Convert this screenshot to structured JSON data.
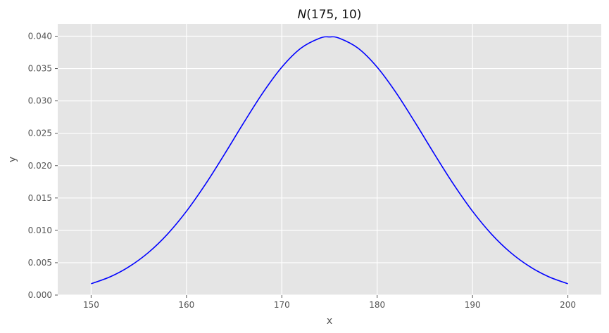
{
  "chart_data": {
    "type": "line",
    "title": {
      "symbol": "N",
      "args": "(175, 10)"
    },
    "xlabel": "x",
    "ylabel": "y",
    "xlim": [
      146.5,
      203.5
    ],
    "ylim": [
      0,
      0.0419
    ],
    "xticks": [
      150,
      160,
      170,
      180,
      190,
      200
    ],
    "xtick_labels": [
      "150",
      "160",
      "170",
      "180",
      "190",
      "200"
    ],
    "yticks": [
      0.0,
      0.005,
      0.01,
      0.015,
      0.02,
      0.025,
      0.03,
      0.035,
      0.04
    ],
    "ytick_labels": [
      "0.000",
      "0.005",
      "0.010",
      "0.015",
      "0.020",
      "0.025",
      "0.030",
      "0.035",
      "0.040"
    ],
    "grid": true,
    "background_color": "#e5e5e5",
    "line_color": "#0000ff",
    "series": [
      {
        "x": [
          150,
          152,
          154,
          156,
          158,
          160,
          162,
          164,
          166,
          168,
          170,
          172,
          174,
          175,
          176,
          178,
          180,
          182,
          184,
          186,
          188,
          190,
          192,
          194,
          196,
          198,
          200
        ],
        "y": [
          0.00175,
          0.00282,
          0.0044,
          0.00656,
          0.0094,
          0.01295,
          0.01714,
          0.02179,
          0.02661,
          0.03123,
          0.03521,
          0.03814,
          0.0397,
          0.03989,
          0.0397,
          0.03814,
          0.03521,
          0.03123,
          0.02661,
          0.02179,
          0.01714,
          0.01295,
          0.0094,
          0.00656,
          0.0044,
          0.00282,
          0.00175
        ]
      }
    ]
  }
}
